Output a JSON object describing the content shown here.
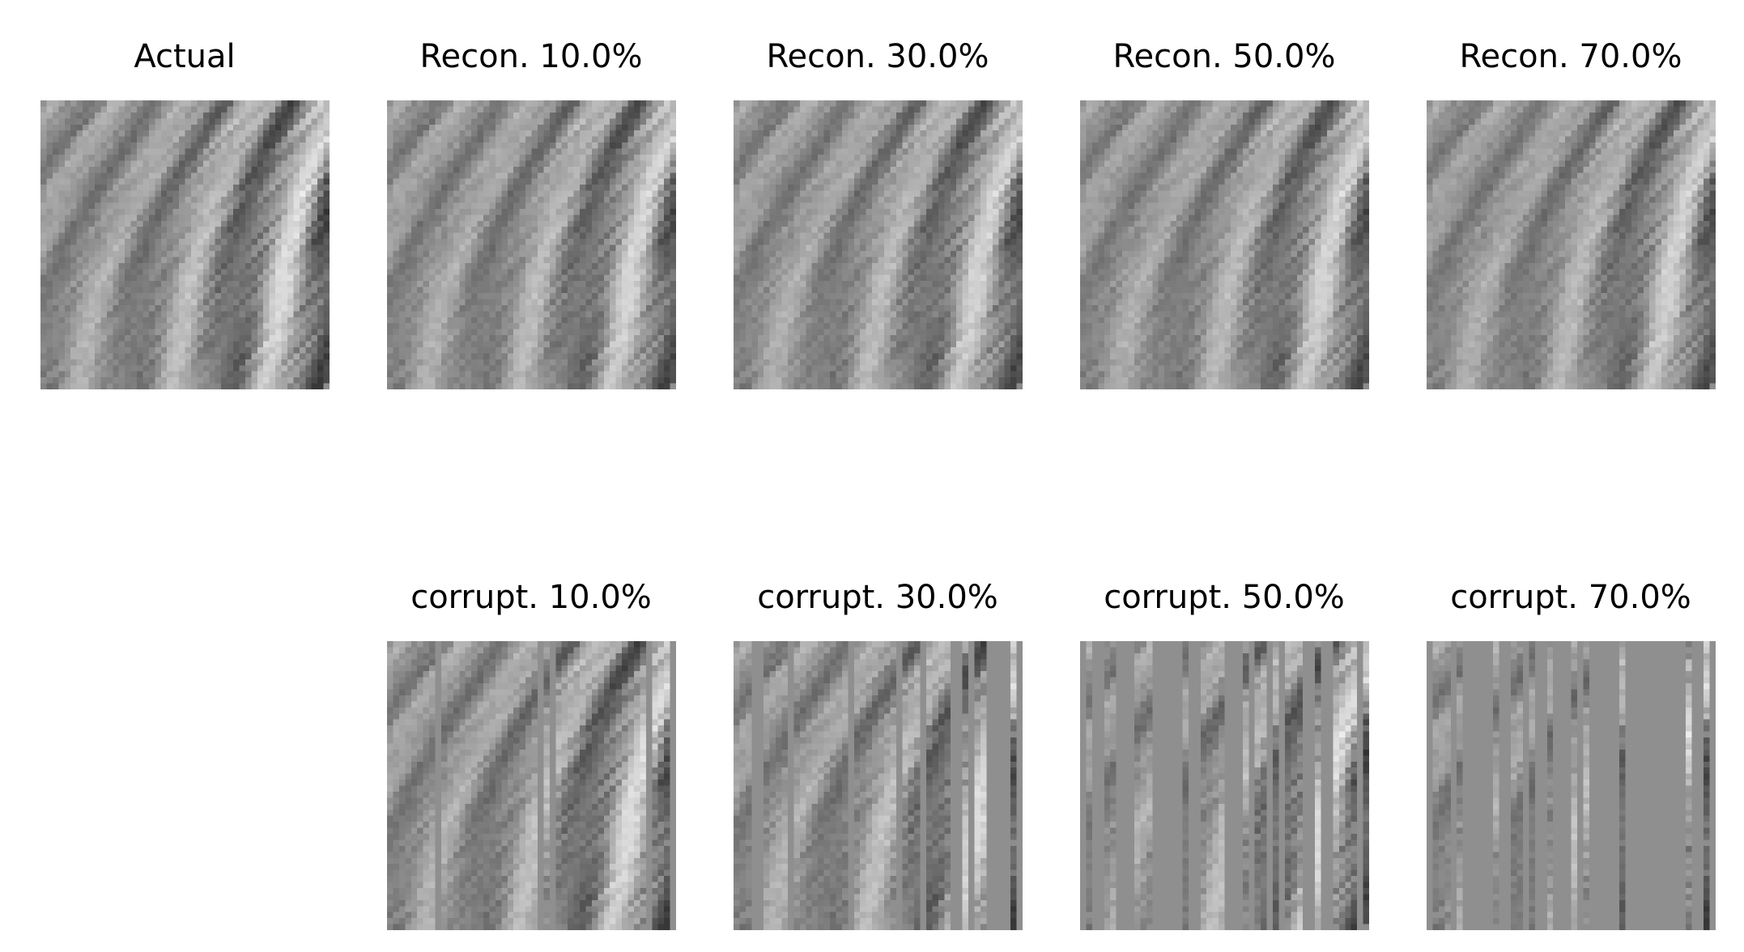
{
  "figure": {
    "description_free": true,
    "colormap": "gray",
    "fill_gray": "#8f8f8f"
  },
  "top_row": [
    {
      "title": "Actual",
      "kind": "actual",
      "corruption_fraction": 0.0
    },
    {
      "title": "Recon. 10.0%",
      "kind": "recon",
      "corruption_fraction": 0.1
    },
    {
      "title": "Recon. 30.0%",
      "kind": "recon",
      "corruption_fraction": 0.3
    },
    {
      "title": "Recon. 50.0%",
      "kind": "recon",
      "corruption_fraction": 0.5
    },
    {
      "title": "Recon. 70.0%",
      "kind": "recon",
      "corruption_fraction": 0.7
    }
  ],
  "bottom_row": [
    {
      "title": "corrupt. 10.0%",
      "kind": "corrupt",
      "corruption_fraction": 0.1
    },
    {
      "title": "corrupt. 30.0%",
      "kind": "corrupt",
      "corruption_fraction": 0.3
    },
    {
      "title": "corrupt. 50.0%",
      "kind": "corrupt",
      "corruption_fraction": 0.5
    },
    {
      "title": "corrupt. 70.0%",
      "kind": "corrupt",
      "corruption_fraction": 0.7
    }
  ]
}
